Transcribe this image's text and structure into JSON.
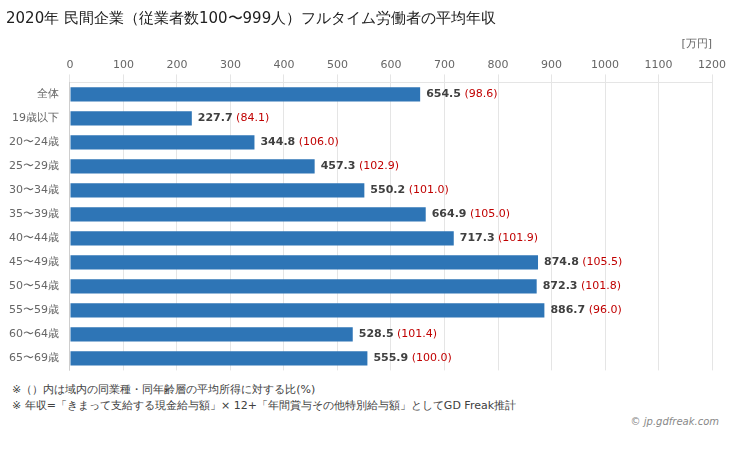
{
  "chart_data": {
    "type": "bar",
    "orientation": "horizontal",
    "title": "2020年 民間企業（従業者数100〜999人）フルタイム労働者の平均年収",
    "xlabel": "[万円]",
    "categories": [
      "全体",
      "19歳以下",
      "20〜24歳",
      "25〜29歳",
      "30〜34歳",
      "35〜39歳",
      "40〜44歳",
      "45〜49歳",
      "50〜54歳",
      "55〜59歳",
      "60〜64歳",
      "65〜69歳"
    ],
    "values": [
      654.5,
      227.7,
      344.8,
      457.3,
      550.2,
      664.9,
      717.3,
      874.8,
      872.3,
      886.7,
      528.5,
      555.9
    ],
    "ratios": [
      98.6,
      84.1,
      106.0,
      102.9,
      101.0,
      105.0,
      101.9,
      105.5,
      101.8,
      96.0,
      101.4,
      100.0
    ],
    "color": "#2e75b6",
    "xlim": [
      0,
      1200
    ],
    "xticks": [
      0,
      100,
      200,
      300,
      400,
      500,
      600,
      700,
      800,
      900,
      1000,
      1100,
      1200
    ],
    "grid": true,
    "data_labels": true,
    "annotations": [
      "※（）内は域内の同業種・同年齢層の平均所得に対する比(%)",
      "※ 年収=「きまって支給する現金給与額」× 12+「年間賞与その他特別給与額」としてGD Freak推計",
      "© jp.gdfreak.com"
    ]
  }
}
